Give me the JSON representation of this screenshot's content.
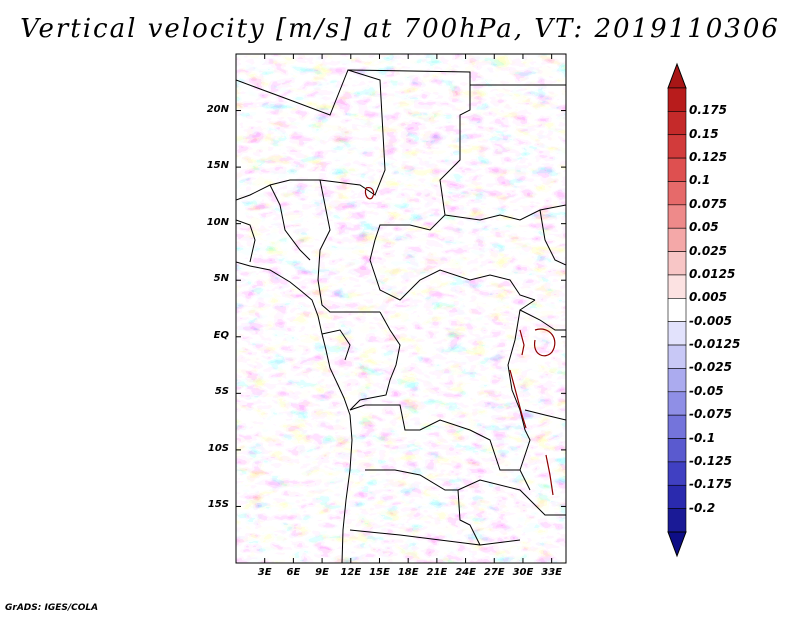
{
  "title": "Vertical velocity [m/s] at 700hPa, VT: 2019110306",
  "footer": "GrADS: IGES/COLA",
  "axes": {
    "lat_labels": [
      "20N",
      "15N",
      "10N",
      "5N",
      "EQ",
      "5S",
      "10S",
      "15S"
    ],
    "lat_values": [
      20,
      15,
      10,
      5,
      0,
      -5,
      -10,
      -15
    ],
    "lon_labels": [
      "3E",
      "6E",
      "9E",
      "12E",
      "15E",
      "18E",
      "21E",
      "24E",
      "27E",
      "30E",
      "33E"
    ],
    "lon_values": [
      3,
      6,
      9,
      12,
      15,
      18,
      21,
      24,
      27,
      30,
      33
    ],
    "lat_range": [
      -20,
      25
    ],
    "lon_range": [
      0,
      34.5
    ]
  },
  "colorbar": {
    "labels": [
      "0.175",
      "0.15",
      "0.125",
      "0.1",
      "0.075",
      "0.05",
      "0.025",
      "0.0125",
      "0.005",
      "-0.005",
      "-0.0125",
      "-0.025",
      "-0.05",
      "-0.075",
      "-0.1",
      "-0.125",
      "-0.175",
      "-0.2"
    ],
    "colors": [
      "#b81c1c",
      "#c52a2a",
      "#d23b3b",
      "#de5050",
      "#e66a6a",
      "#ee8a8a",
      "#f4a8a8",
      "#f8c6c6",
      "#fce2e2",
      "#ffffff",
      "#e2e2fc",
      "#c8c8f6",
      "#ababef",
      "#8f8fe6",
      "#7474db",
      "#5a5acf",
      "#4040c2",
      "#2a2aae",
      "#1a1a96"
    ],
    "top_arrow_color": "#a81616",
    "bottom_arrow_color": "#0e0e86"
  }
}
